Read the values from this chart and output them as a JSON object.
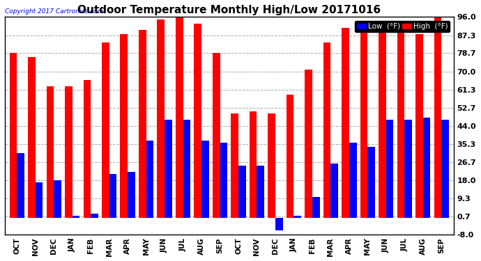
{
  "title": "Outdoor Temperature Monthly High/Low 20171016",
  "copyright": "Copyright 2017 Cartronics.com",
  "months": [
    "OCT",
    "NOV",
    "DEC",
    "JAN",
    "FEB",
    "MAR",
    "APR",
    "MAY",
    "JUN",
    "JUL",
    "AUG",
    "SEP",
    "OCT",
    "NOV",
    "DEC",
    "JAN",
    "FEB",
    "MAR",
    "APR",
    "MAY",
    "JUN",
    "JUL",
    "AUG",
    "SEP"
  ],
  "high_values": [
    79,
    77,
    63,
    63,
    66,
    84,
    88,
    90,
    95,
    97,
    93,
    79,
    50,
    51,
    50,
    59,
    71,
    84,
    91,
    92,
    93,
    92,
    88,
    97
  ],
  "low_values": [
    31,
    17,
    18,
    1,
    2,
    21,
    22,
    37,
    47,
    47,
    37,
    36,
    25,
    25,
    -6,
    1,
    10,
    26,
    36,
    34,
    47,
    47,
    48,
    47
  ],
  "bar_color_high": "#ff0000",
  "bar_color_low": "#0000ff",
  "background_color": "#ffffff",
  "plot_background": "#ffffff",
  "grid_color": "#aaaaaa",
  "yticks": [
    -8.0,
    0.7,
    9.3,
    18.0,
    26.7,
    35.3,
    44.0,
    52.7,
    61.3,
    70.0,
    78.7,
    87.3,
    96.0
  ],
  "ymin": -8.0,
  "ymax": 96.0,
  "legend_low_label": "Low  (°F)",
  "legend_high_label": "High  (°F)",
  "title_fontsize": 11,
  "tick_fontsize": 8,
  "xlabel_fontsize": 7.5,
  "bar_width": 0.4
}
